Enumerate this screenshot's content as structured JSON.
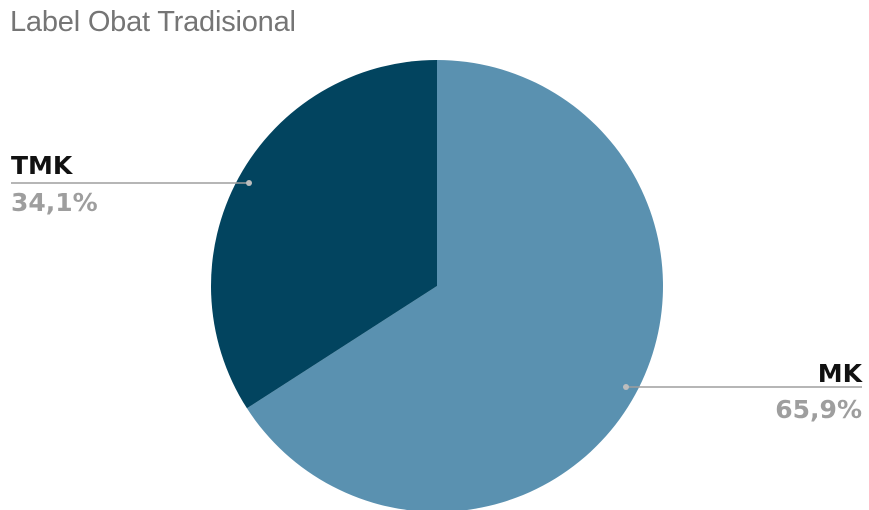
{
  "chart_data": {
    "type": "pie",
    "title": "Label Obat Tradisional",
    "slices": [
      {
        "label": "MK",
        "value": 65.9,
        "value_label": "65,9%",
        "color": "#5a91b0"
      },
      {
        "label": "TMK",
        "value": 34.1,
        "value_label": "34,1%",
        "color": "#02445f"
      }
    ],
    "start_angle_deg": 0,
    "direction": "clockwise",
    "legend": "none"
  }
}
